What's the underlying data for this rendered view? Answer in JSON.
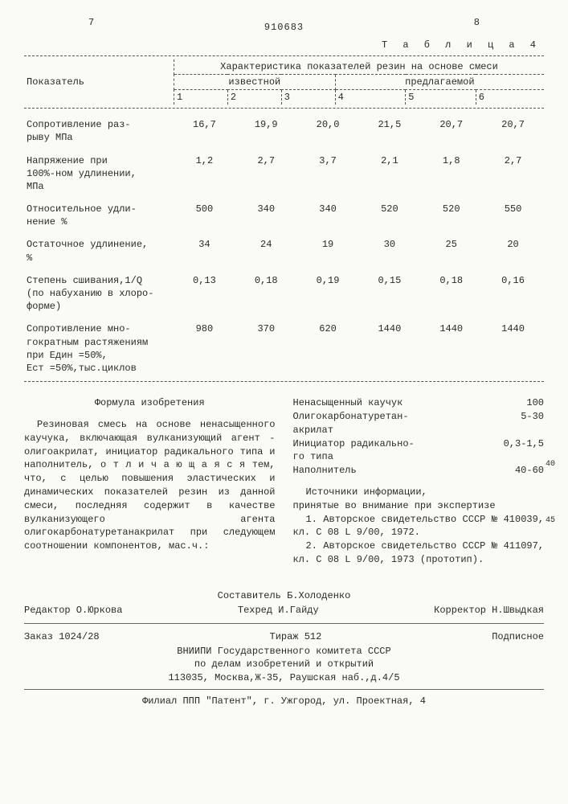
{
  "header": {
    "left_page": "7",
    "right_page": "8",
    "patent_no": "910683",
    "table_label": "Т а б л и ц а  4"
  },
  "table": {
    "param_header": "Показатель",
    "group_header": "Характеристика показателей резин на основе смеси",
    "group_a": "известной",
    "group_b": "предлагаемой",
    "cols": [
      "1",
      "2",
      "3",
      "4",
      "5",
      "6"
    ],
    "rows": [
      {
        "label": "Сопротивление раз-\nрыву МПа",
        "v": [
          "16,7",
          "19,9",
          "20,0",
          "21,5",
          "20,7",
          "20,7"
        ]
      },
      {
        "label": "Напряжение при\n100%-ном удлинении,\nМПа",
        "v": [
          "1,2",
          "2,7",
          "3,7",
          "2,1",
          "1,8",
          "2,7"
        ]
      },
      {
        "label": "Относительное удли-\nнение %",
        "v": [
          "500",
          "340",
          "340",
          "520",
          "520",
          "550"
        ]
      },
      {
        "label": "Остаточное удлинение,\n%",
        "v": [
          "34",
          "24",
          "19",
          "30",
          "25",
          "20"
        ]
      },
      {
        "label": "Степень сшивания,1/Q\n(по набуханию в хлоро-\nформе)",
        "v": [
          "0,13",
          "0,18",
          "0,19",
          "0,15",
          "0,18",
          "0,16"
        ]
      },
      {
        "label": "Сопротивление мно-\nгократным растяжениям\nпри Eдин =50%,\nEст =50%,тыс.циклов",
        "v": [
          "980",
          "370",
          "620",
          "1440",
          "1440",
          "1440"
        ]
      }
    ]
  },
  "claim": {
    "title": "Формула изобретения",
    "text": "Резиновая смесь на основе ненасыщенного каучука, включающая вулканизующий агент - олигоакрилат, инициатор радикального типа и наполнитель, о т л и ч а ю щ а я с я  тем, что, с целью повышения эластических и динамических показателей резин из данной смеси, последняя содержит в качестве вулканизующего агента олигокарбонатуретанакрилат при следующем соотношении компонентов, мас.ч.:",
    "marks": {
      "m40": "40",
      "m45": "45"
    }
  },
  "components": [
    {
      "name": "Ненасыщенный каучук",
      "val": "100"
    },
    {
      "name": "Олигокарбонатуретан-\nакрилат",
      "val": "5-30"
    },
    {
      "name": "Инициатор радикально-\nго типа",
      "val": "0,3-1,5"
    },
    {
      "name": "Наполнитель",
      "val": "40-60"
    }
  ],
  "refs": {
    "title": "Источники информации,\nпринятые во внимание при экспертизе",
    "items": [
      "1. Авторское свидетельство СССР № 410039, кл. C 08 L 9/00, 1972.",
      "2. Авторское свидетельство СССР № 411097, кл. C 08 L 9/00, 1973 (прототип)."
    ]
  },
  "credits": {
    "compiler": "Составитель Б.Холоденко",
    "editor": "Редактор О.Юркова",
    "techred": "Техред И.Гайду",
    "corrector": "Корректор Н.Швыдкая",
    "order": "Заказ 1024/28",
    "tirage": "Тираж 512",
    "subscr": "Подписное",
    "org1": "ВНИИПИ Государственного комитета СССР",
    "org2": "по делам изобретений и открытий",
    "addr": "113035, Москва,Ж-35, Раушская наб.,д.4/5",
    "filial": "Филиал ППП \"Патент\", г. Ужгород, ул. Проектная, 4"
  }
}
